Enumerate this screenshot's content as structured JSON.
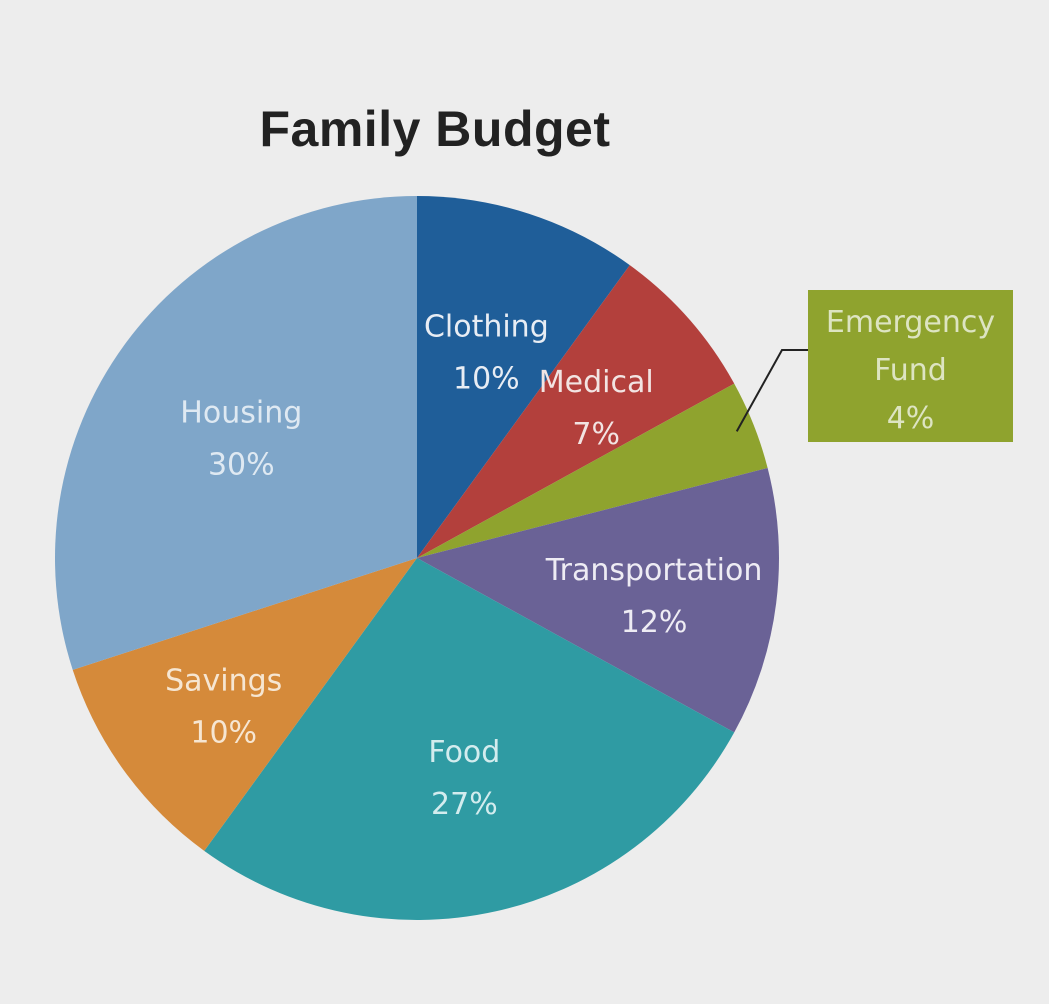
{
  "chart_data": {
    "type": "pie",
    "title": "Family Budget",
    "slices": [
      {
        "label": "Clothing",
        "value": 10,
        "value_label": "10%",
        "color": "#1f5e99",
        "text_color": "#e8edf4"
      },
      {
        "label": "Medical",
        "value": 7,
        "value_label": "7%",
        "color": "#b3403c",
        "text_color": "#f2e4e2"
      },
      {
        "label": "Emergency Fund",
        "value": 4,
        "value_label": "4%",
        "color": "#8fa32e",
        "text_color": "#dde4c2",
        "callout": true
      },
      {
        "label": "Transportation",
        "value": 12,
        "value_label": "12%",
        "color": "#6a6296",
        "text_color": "#eeecf4"
      },
      {
        "label": "Food",
        "value": 27,
        "value_label": "27%",
        "color": "#2f9ba3",
        "text_color": "#d3ecee"
      },
      {
        "label": "Savings",
        "value": 10,
        "value_label": "10%",
        "color": "#d58a3a",
        "text_color": "#f6e6d2"
      },
      {
        "label": "Housing",
        "value": 30,
        "value_label": "30%",
        "color": "#7fa6c9",
        "text_color": "#dfe9f2"
      }
    ],
    "legend": "none"
  }
}
